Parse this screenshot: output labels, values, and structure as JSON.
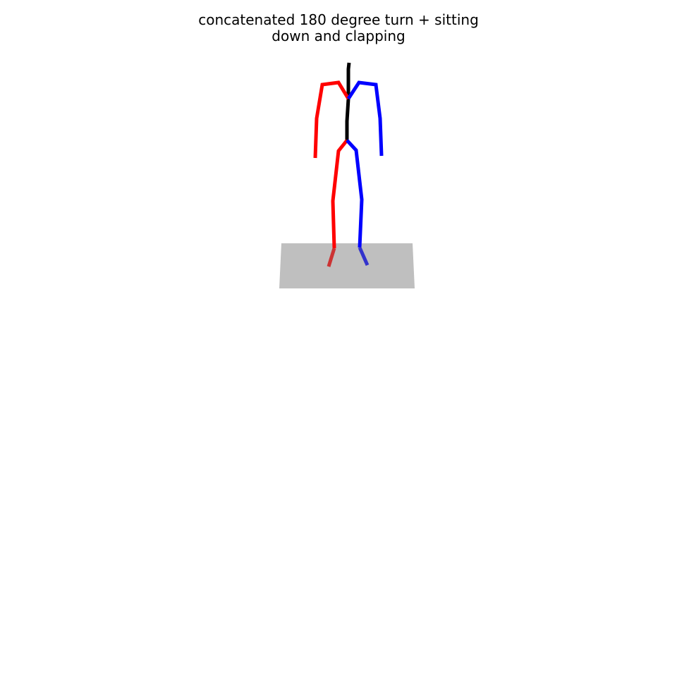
{
  "figure": {
    "title_lines": [
      "concatenated 180 degree turn + sitting",
      "down and clapping"
    ]
  },
  "colors": {
    "background": "#ffffff",
    "floor": "#bfbfbf",
    "spine": "#000000",
    "right_side": "#ff0000",
    "left_side": "#0000ff",
    "right_foot": "#cc3333",
    "left_foot": "#3333cc"
  }
}
